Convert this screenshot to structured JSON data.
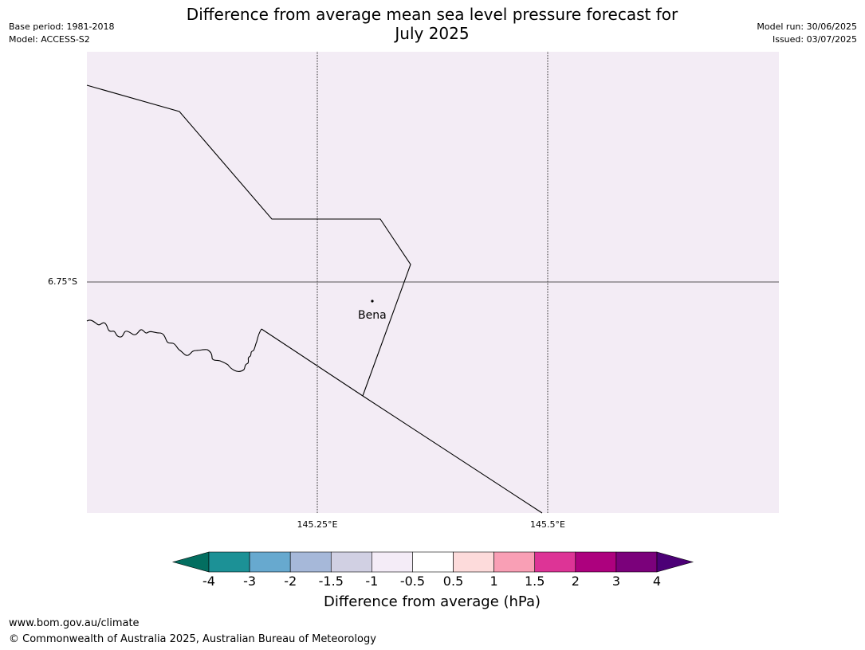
{
  "header": {
    "title_line1": "Difference from average mean sea level pressure forecast for",
    "title_line2": "July 2025",
    "base_period": "Base period: 1981-2018",
    "model": "Model: ACCESS-S2",
    "model_run": "Model run: 30/06/2025",
    "issued": "Issued: 03/07/2025"
  },
  "map": {
    "background_color": "#f3ecf5",
    "latitude_labels": [
      "6.75°S"
    ],
    "longitude_labels": [
      "145.25°E",
      "145.5°E"
    ],
    "places": [
      {
        "name": "Bena"
      }
    ]
  },
  "colorbar": {
    "label": "Difference from average (hPa)",
    "ticks": [
      "-4",
      "-3",
      "-2",
      "-1.5",
      "-1",
      "-0.5",
      "0.5",
      "1",
      "1.5",
      "2",
      "3",
      "4"
    ],
    "colors": {
      "under": "#036e60",
      "bins": [
        "#1c9196",
        "#67a9cf",
        "#a6b8d9",
        "#d1d0e3",
        "#f4ecf7",
        "#ffffff",
        "#fddbdb",
        "#f99fb5",
        "#dd3496",
        "#ad017e",
        "#7b017b"
      ],
      "over": "#4c0076"
    }
  },
  "footer": {
    "url": "www.bom.gov.au/climate",
    "copyright": "© Commonwealth of Australia 2025, Australian Bureau of Meteorology"
  }
}
